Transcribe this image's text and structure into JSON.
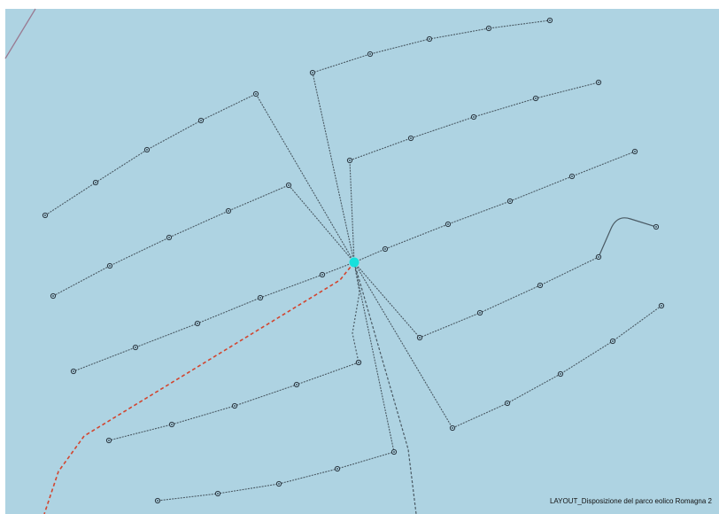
{
  "map": {
    "caption": "LAYOUT_Disposizione del parco eolico Romagna 2",
    "colors": {
      "sea": "#aed3e2",
      "cable": "#4a5a64",
      "export_cable": "#d2452f",
      "substation": "#16e0dc",
      "turbine_fill": "#aed3e2",
      "turbine_stroke": "#2a3640"
    },
    "icons": {
      "substation": "substation-icon",
      "turbine": "turbine-icon"
    }
  }
}
